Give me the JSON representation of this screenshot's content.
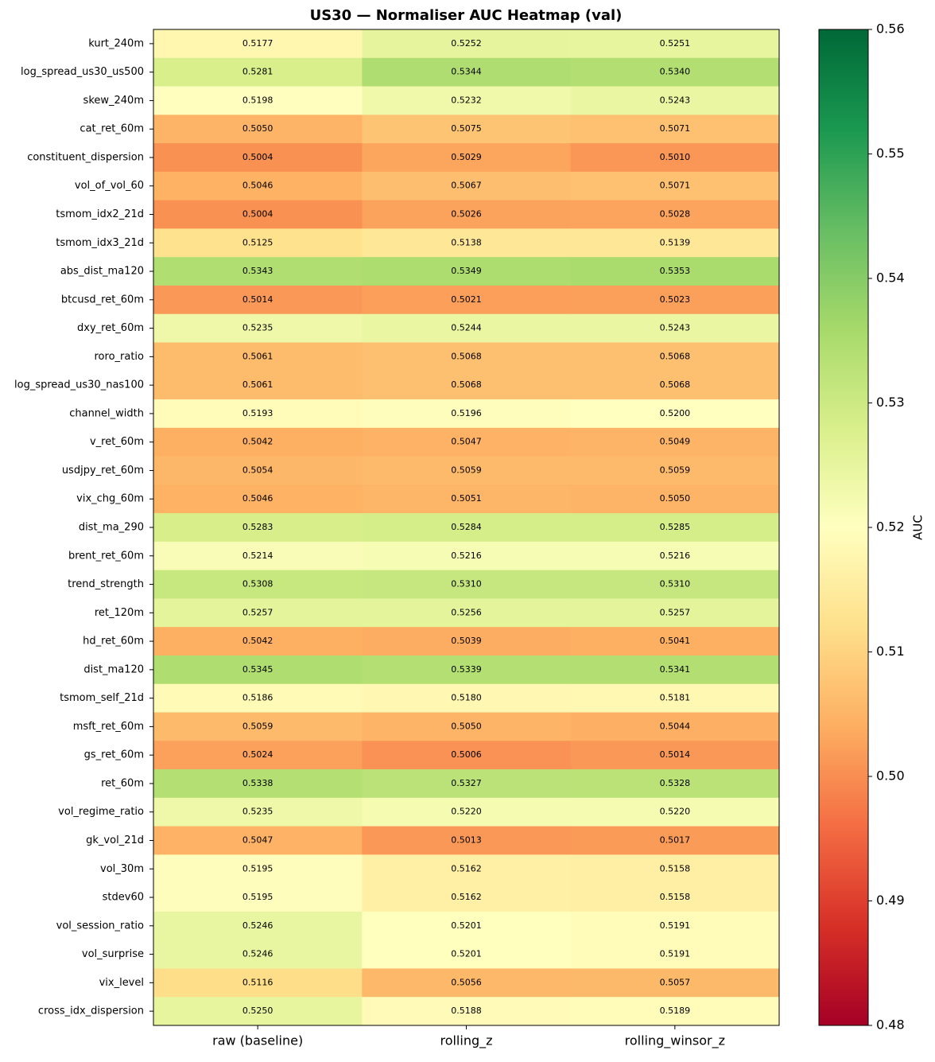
{
  "chart_data": {
    "type": "heatmap",
    "title": "US30 — Normaliser AUC Heatmap (val)",
    "categories": [
      "raw (baseline)",
      "rolling_z",
      "rolling_winsor_z"
    ],
    "rows": [
      "kurt_240m",
      "log_spread_us30_us500",
      "skew_240m",
      "cat_ret_60m",
      "constituent_dispersion",
      "vol_of_vol_60",
      "tsmom_idx2_21d",
      "tsmom_idx3_21d",
      "abs_dist_ma120",
      "btcusd_ret_60m",
      "dxy_ret_60m",
      "roro_ratio",
      "log_spread_us30_nas100",
      "channel_width",
      "v_ret_60m",
      "usdjpy_ret_60m",
      "vix_chg_60m",
      "dist_ma_290",
      "brent_ret_60m",
      "trend_strength",
      "ret_120m",
      "hd_ret_60m",
      "dist_ma120",
      "tsmom_self_21d",
      "msft_ret_60m",
      "gs_ret_60m",
      "ret_60m",
      "vol_regime_ratio",
      "gk_vol_21d",
      "vol_30m",
      "stdev60",
      "vol_session_ratio",
      "vol_surprise",
      "vix_level",
      "cross_idx_dispersion"
    ],
    "values": [
      [
        0.5177,
        0.5252,
        0.5251
      ],
      [
        0.5281,
        0.5344,
        0.534
      ],
      [
        0.5198,
        0.5232,
        0.5243
      ],
      [
        0.505,
        0.5075,
        0.5071
      ],
      [
        0.5004,
        0.5029,
        0.501
      ],
      [
        0.5046,
        0.5067,
        0.5071
      ],
      [
        0.5004,
        0.5026,
        0.5028
      ],
      [
        0.5125,
        0.5138,
        0.5139
      ],
      [
        0.5343,
        0.5349,
        0.5353
      ],
      [
        0.5014,
        0.5021,
        0.5023
      ],
      [
        0.5235,
        0.5244,
        0.5243
      ],
      [
        0.5061,
        0.5068,
        0.5068
      ],
      [
        0.5061,
        0.5068,
        0.5068
      ],
      [
        0.5193,
        0.5196,
        0.52
      ],
      [
        0.5042,
        0.5047,
        0.5049
      ],
      [
        0.5054,
        0.5059,
        0.5059
      ],
      [
        0.5046,
        0.5051,
        0.505
      ],
      [
        0.5283,
        0.5284,
        0.5285
      ],
      [
        0.5214,
        0.5216,
        0.5216
      ],
      [
        0.5308,
        0.531,
        0.531
      ],
      [
        0.5257,
        0.5256,
        0.5257
      ],
      [
        0.5042,
        0.5039,
        0.5041
      ],
      [
        0.5345,
        0.5339,
        0.5341
      ],
      [
        0.5186,
        0.518,
        0.5181
      ],
      [
        0.5059,
        0.505,
        0.5044
      ],
      [
        0.5024,
        0.5006,
        0.5014
      ],
      [
        0.5338,
        0.5327,
        0.5328
      ],
      [
        0.5235,
        0.522,
        0.522
      ],
      [
        0.5047,
        0.5013,
        0.5017
      ],
      [
        0.5195,
        0.5162,
        0.5158
      ],
      [
        0.5195,
        0.5162,
        0.5158
      ],
      [
        0.5246,
        0.5201,
        0.5191
      ],
      [
        0.5246,
        0.5201,
        0.5191
      ],
      [
        0.5116,
        0.5056,
        0.5057
      ],
      [
        0.525,
        0.5188,
        0.5189
      ]
    ],
    "value_labels": [
      [
        "0.5177",
        "0.5252",
        "0.5251"
      ],
      [
        "0.5281",
        "0.5344",
        "0.5340"
      ],
      [
        "0.5198",
        "0.5232",
        "0.5243"
      ],
      [
        "0.5050",
        "0.5075",
        "0.5071"
      ],
      [
        "0.5004",
        "0.5029",
        "0.5010"
      ],
      [
        "0.5046",
        "0.5067",
        "0.5071"
      ],
      [
        "0.5004",
        "0.5026",
        "0.5028"
      ],
      [
        "0.5125",
        "0.5138",
        "0.5139"
      ],
      [
        "0.5343",
        "0.5349",
        "0.5353"
      ],
      [
        "0.5014",
        "0.5021",
        "0.5023"
      ],
      [
        "0.5235",
        "0.5244",
        "0.5243"
      ],
      [
        "0.5061",
        "0.5068",
        "0.5068"
      ],
      [
        "0.5061",
        "0.5068",
        "0.5068"
      ],
      [
        "0.5193",
        "0.5196",
        "0.5200"
      ],
      [
        "0.5042",
        "0.5047",
        "0.5049"
      ],
      [
        "0.5054",
        "0.5059",
        "0.5059"
      ],
      [
        "0.5046",
        "0.5051",
        "0.5050"
      ],
      [
        "0.5283",
        "0.5284",
        "0.5285"
      ],
      [
        "0.5214",
        "0.5216",
        "0.5216"
      ],
      [
        "0.5308",
        "0.5310",
        "0.5310"
      ],
      [
        "0.5257",
        "0.5256",
        "0.5257"
      ],
      [
        "0.5042",
        "0.5039",
        "0.5041"
      ],
      [
        "0.5345",
        "0.5339",
        "0.5341"
      ],
      [
        "0.5186",
        "0.5180",
        "0.5181"
      ],
      [
        "0.5059",
        "0.5050",
        "0.5044"
      ],
      [
        "0.5024",
        "0.5006",
        "0.5014"
      ],
      [
        "0.5338",
        "0.5327",
        "0.5328"
      ],
      [
        "0.5235",
        "0.5220",
        "0.5220"
      ],
      [
        "0.5047",
        "0.5013",
        "0.5017"
      ],
      [
        "0.5195",
        "0.5162",
        "0.5158"
      ],
      [
        "0.5195",
        "0.5162",
        "0.5158"
      ],
      [
        "0.5246",
        "0.5201",
        "0.5191"
      ],
      [
        "0.5246",
        "0.5201",
        "0.5191"
      ],
      [
        "0.5116",
        "0.5056",
        "0.5057"
      ],
      [
        "0.5250",
        "0.5188",
        "0.5189"
      ]
    ],
    "colorbar_label": "AUC",
    "clim": [
      0.48,
      0.56
    ],
    "cticks": [
      0.48,
      0.49,
      {
        "value": 0.5,
        "label": "0.50"
      },
      0.51,
      0.52,
      0.53,
      0.54,
      0.55,
      0.56
    ],
    "colormap": [
      "#a50026",
      "#d73027",
      "#f46d43",
      "#fdae61",
      "#fee08b",
      "#ffffbf",
      "#d9ef8b",
      "#a6d96a",
      "#66bd63",
      "#1a9850",
      "#006837"
    ]
  }
}
